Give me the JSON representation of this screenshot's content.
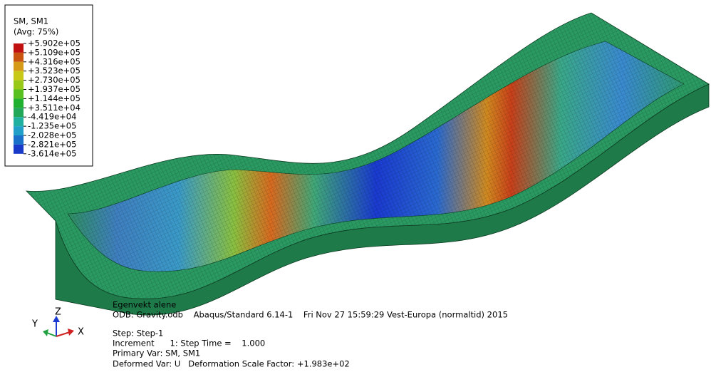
{
  "legend": {
    "title": "SM, SM1",
    "subtitle": "(Avg: 75%)",
    "labels": [
      "+5.902e+05",
      "+5.109e+05",
      "+4.316e+05",
      "+3.523e+05",
      "+2.730e+05",
      "+1.937e+05",
      "+1.144e+05",
      "+3.511e+04",
      "-4.419e+04",
      "-1.235e+05",
      "-2.028e+05",
      "-2.821e+05",
      "-3.614e+05"
    ]
  },
  "info": {
    "description": "Egenvekt alene",
    "odb": "ODB: Gravity.odb    Abaqus/Standard 6.14-1    Fri Nov 27 15:59:29 Vest-Europa (normaltid) 2015",
    "step": "Step: Step-1",
    "increment": "Increment      1: Step Time =    1.000",
    "primary_var": "Primary Var: SM, SM1",
    "deformed_var": "Deformed Var: U   Deformation Scale Factor: +1.983e+02"
  },
  "triad": {
    "y": "Y",
    "z": "Z",
    "x": "X"
  }
}
